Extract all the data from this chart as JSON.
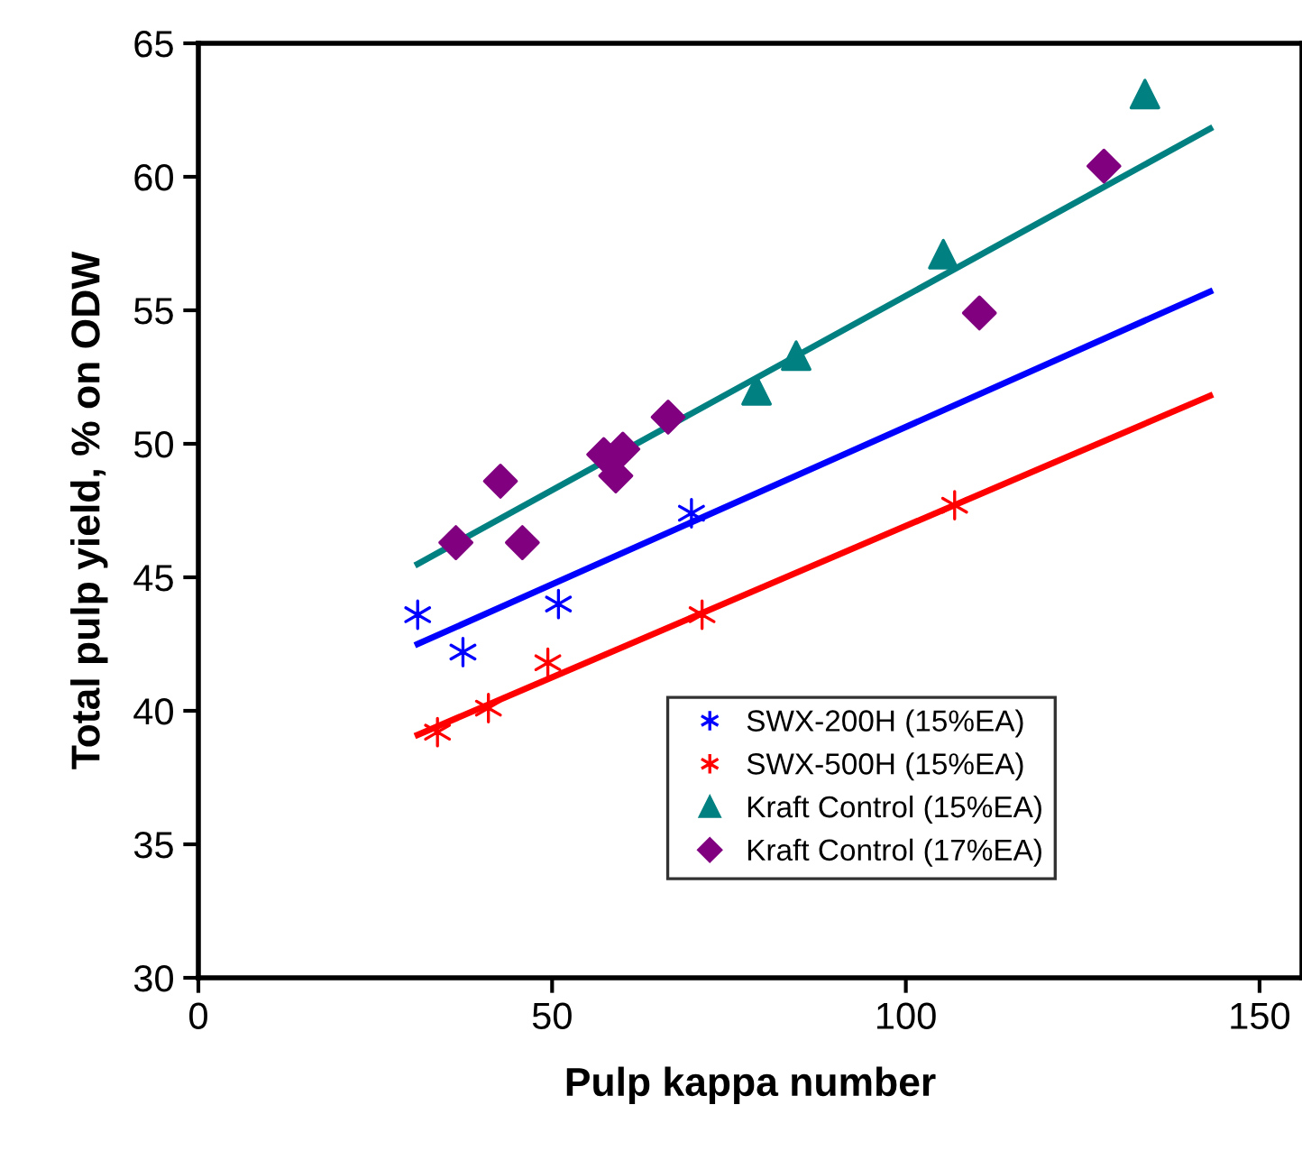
{
  "chart_data": {
    "type": "scatter",
    "xlabel": "Pulp kappa number",
    "ylabel": "Total pulp yield, % on ODW",
    "xlim": [
      0,
      156
    ],
    "xticks": [
      0,
      50,
      100,
      150
    ],
    "ylim": [
      30,
      65
    ],
    "yticks": [
      30,
      35,
      40,
      45,
      50,
      55,
      60,
      65
    ],
    "grid": false,
    "legend": "bottom right",
    "series": [
      {
        "name": "SWX-200H (15%EA)",
        "color": "#0000ff",
        "marker": "cross",
        "x": [
          31.0,
          37.4,
          50.9,
          69.7
        ],
        "values": [
          43.6,
          42.2,
          44.0,
          47.4
        ]
      },
      {
        "name": "SWX-500H (15%EA)",
        "color": "#ff0000",
        "marker": "cross",
        "x": [
          33.8,
          41.0,
          49.4,
          71.2,
          106.9
        ],
        "values": [
          39.2,
          40.1,
          41.8,
          43.6,
          47.7
        ]
      },
      {
        "name": "Kraft Control (15%EA)",
        "color": "#008080",
        "marker": "triangle",
        "x": [
          78.9,
          84.5,
          105.3,
          133.8
        ],
        "values": [
          52.0,
          53.3,
          57.1,
          63.1
        ]
      },
      {
        "name": "Kraft Control (17%EA)",
        "color": "#800080",
        "marker": "diamond",
        "x": [
          36.4,
          42.7,
          45.8,
          57.3,
          60.0,
          59.0,
          66.4,
          110.4,
          128.0
        ],
        "values": [
          46.3,
          48.6,
          46.3,
          49.6,
          49.8,
          48.8,
          51.0,
          54.9,
          60.4
        ]
      },
      {
        "type": "line",
        "color": "#0000ff",
        "marker": "none",
        "x": [
          31,
          143
        ],
        "values": [
          42.5,
          55.7
        ]
      },
      {
        "type": "line",
        "color": "#ff0000",
        "marker": "none",
        "x": [
          31,
          143
        ],
        "values": [
          39.1,
          51.8
        ]
      },
      {
        "type": "line",
        "color": "#008080",
        "marker": "none",
        "x": [
          31,
          143
        ],
        "values": [
          45.5,
          61.8
        ]
      }
    ]
  }
}
